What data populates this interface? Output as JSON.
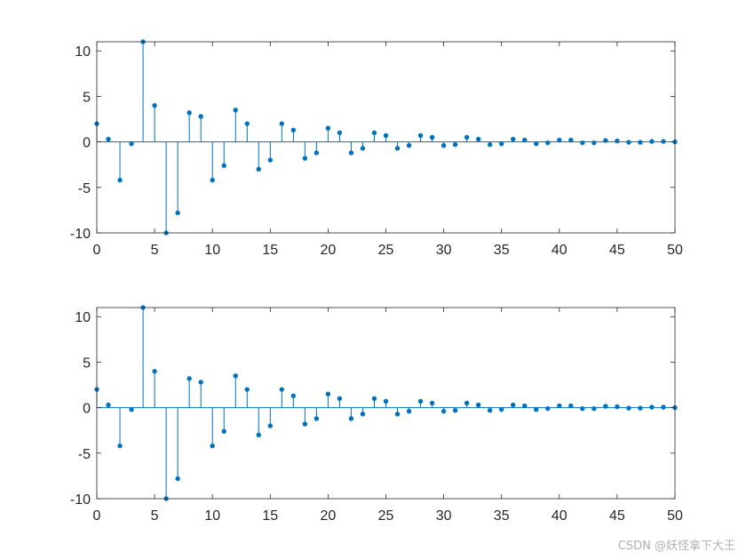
{
  "watermark": "CSDN @妖怪拿下大王",
  "colors": {
    "stem": "#0072BD",
    "axis": "#262626",
    "background": "#ffffff"
  },
  "chart_data": [
    {
      "type": "stem",
      "xlim": [
        0,
        50
      ],
      "ylim": [
        -10,
        11
      ],
      "xticks": [
        0,
        5,
        10,
        15,
        20,
        25,
        30,
        35,
        40,
        45,
        50
      ],
      "yticks": [
        -10,
        -5,
        0,
        5,
        10
      ],
      "grid": false,
      "x": [
        0,
        1,
        2,
        3,
        4,
        5,
        6,
        7,
        8,
        9,
        10,
        11,
        12,
        13,
        14,
        15,
        16,
        17,
        18,
        19,
        20,
        21,
        22,
        23,
        24,
        25,
        26,
        27,
        28,
        29,
        30,
        31,
        32,
        33,
        34,
        35,
        36,
        37,
        38,
        39,
        40,
        41,
        42,
        43,
        44,
        45,
        46,
        47,
        48,
        49,
        50
      ],
      "values": [
        2,
        0.3,
        -4.2,
        -0.2,
        11,
        4,
        -10,
        -7.8,
        3.2,
        2.8,
        -4.2,
        -2.6,
        3.5,
        2,
        -3,
        -2,
        2,
        1.3,
        -1.8,
        -1.2,
        1.5,
        1,
        -1.2,
        -0.7,
        1,
        0.7,
        -0.7,
        -0.4,
        0.7,
        0.5,
        -0.4,
        -0.3,
        0.5,
        0.3,
        -0.3,
        -0.2,
        0.3,
        0.2,
        -0.2,
        -0.1,
        0.2,
        0.2,
        -0.1,
        -0.1,
        0.15,
        0.1,
        -0.05,
        -0.05,
        0.05,
        0.05,
        0
      ]
    },
    {
      "type": "stem",
      "xlim": [
        0,
        50
      ],
      "ylim": [
        -10,
        11
      ],
      "xticks": [
        0,
        5,
        10,
        15,
        20,
        25,
        30,
        35,
        40,
        45,
        50
      ],
      "yticks": [
        -10,
        -5,
        0,
        5,
        10
      ],
      "grid": false,
      "x": [
        0,
        1,
        2,
        3,
        4,
        5,
        6,
        7,
        8,
        9,
        10,
        11,
        12,
        13,
        14,
        15,
        16,
        17,
        18,
        19,
        20,
        21,
        22,
        23,
        24,
        25,
        26,
        27,
        28,
        29,
        30,
        31,
        32,
        33,
        34,
        35,
        36,
        37,
        38,
        39,
        40,
        41,
        42,
        43,
        44,
        45,
        46,
        47,
        48,
        49,
        50
      ],
      "values": [
        2,
        0.3,
        -4.2,
        -0.2,
        11,
        4,
        -10,
        -7.8,
        3.2,
        2.8,
        -4.2,
        -2.6,
        3.5,
        2,
        -3,
        -2,
        2,
        1.3,
        -1.8,
        -1.2,
        1.5,
        1,
        -1.2,
        -0.7,
        1,
        0.7,
        -0.7,
        -0.4,
        0.7,
        0.5,
        -0.4,
        -0.3,
        0.5,
        0.3,
        -0.3,
        -0.2,
        0.3,
        0.2,
        -0.2,
        -0.1,
        0.2,
        0.2,
        -0.1,
        -0.1,
        0.15,
        0.1,
        -0.05,
        -0.05,
        0.05,
        0.05,
        0
      ]
    }
  ]
}
